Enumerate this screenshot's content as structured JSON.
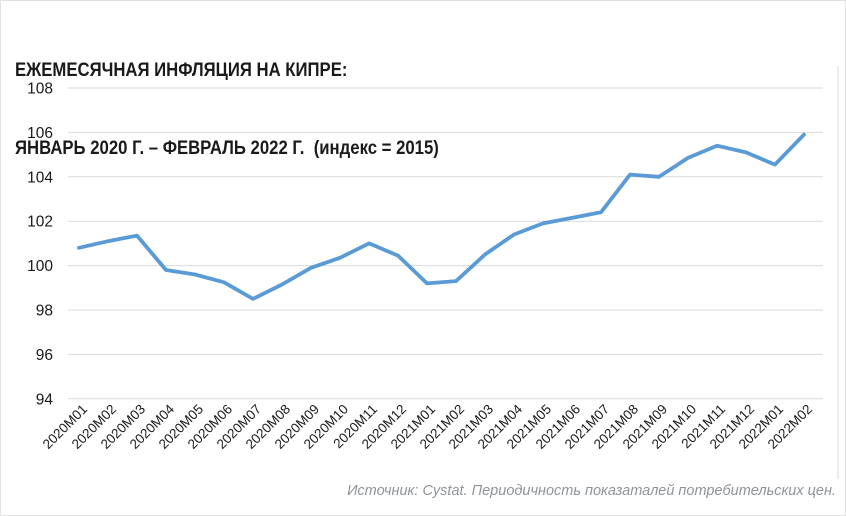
{
  "title": {
    "line1": "ЕЖЕМЕСЯЧНАЯ ИНФЛЯЦИЯ НА КИПРЕ:",
    "line2": "ЯНВАРЬ 2020 Г. – ФЕВРАЛЬ 2022 Г.  (индекс = 2015)"
  },
  "source_note": "Источник: Cystat. Периодичность показаталей потребительских цен.",
  "colors": {
    "line": "#5b9bd5",
    "gridline": "#d9d9d9",
    "plot_border": "#d9d9d9",
    "axis_text": "#1a1a1a",
    "title_text": "#1a1a1a",
    "source_text": "#8f9498",
    "background": "#ffffff"
  },
  "chart_data": {
    "type": "line",
    "title": "ЕЖЕМЕСЯЧНАЯ ИНФЛЯЦИЯ НА КИПРЕ: ЯНВАРЬ 2020 Г. – ФЕВРАЛЬ 2022 Г. (индекс = 2015)",
    "categories": [
      "2020M01",
      "2020M02",
      "2020M03",
      "2020M04",
      "2020M05",
      "2020M06",
      "2020M07",
      "2020M08",
      "2020M09",
      "2020M10",
      "2020M11",
      "2020M12",
      "2021M01",
      "2021M02",
      "2021M03",
      "2021M04",
      "2021M05",
      "2021M06",
      "2021M07",
      "2021M08",
      "2021M09",
      "2021M10",
      "2021M11",
      "2021M12",
      "2022M01",
      "2022M02"
    ],
    "values": [
      100.8,
      101.1,
      101.35,
      99.8,
      99.6,
      99.25,
      98.5,
      99.15,
      99.9,
      100.35,
      101.0,
      100.45,
      99.2,
      99.3,
      100.5,
      101.4,
      101.9,
      102.15,
      102.4,
      104.1,
      104.0,
      104.85,
      105.4,
      105.1,
      104.55,
      105.9
    ],
    "xlabel": "",
    "ylabel": "",
    "ylim": [
      94,
      108
    ],
    "yticks": [
      94,
      96,
      98,
      100,
      102,
      104,
      106,
      108
    ],
    "grid": "horizontal",
    "legend": "none",
    "source": "Источник: Cystat. Периодичность показаталей потребительских цен."
  }
}
